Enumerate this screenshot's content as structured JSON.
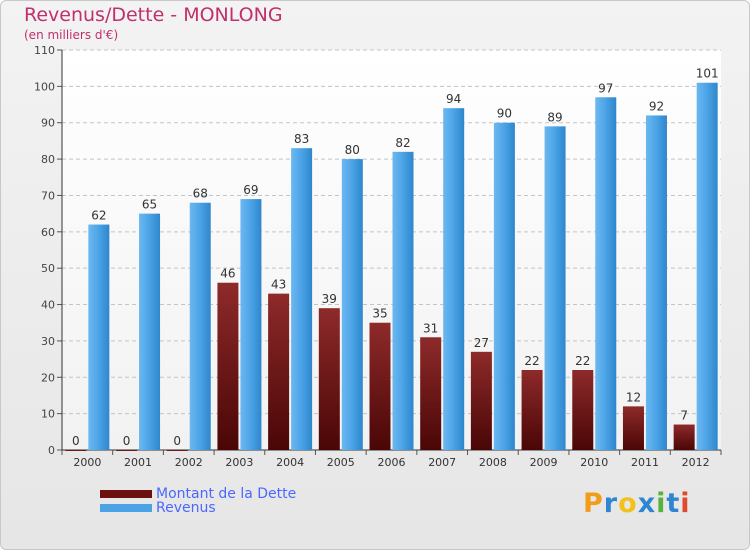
{
  "title": "Revenus/Dette - MONLONG",
  "subtitle": "(en milliers d'€)",
  "chart_data": {
    "type": "bar",
    "categories": [
      "2000",
      "2001",
      "2002",
      "2003",
      "2004",
      "2005",
      "2006",
      "2007",
      "2008",
      "2009",
      "2010",
      "2011",
      "2012"
    ],
    "series": [
      {
        "name": "Montant de la Dette",
        "values": [
          0,
          0,
          0,
          46,
          43,
          39,
          35,
          31,
          27,
          22,
          22,
          12,
          7
        ],
        "color": "#7a1a1a"
      },
      {
        "name": "Revenus",
        "values": [
          62,
          65,
          68,
          69,
          83,
          80,
          82,
          94,
          90,
          89,
          97,
          92,
          101
        ],
        "color": "#4ba3e6"
      }
    ],
    "ylim": [
      0,
      110
    ],
    "yticks": [
      0,
      10,
      20,
      30,
      40,
      50,
      60,
      70,
      80,
      90,
      100,
      110
    ],
    "grid": true,
    "legend_position": "bottom-left"
  },
  "legend": {
    "dette_label": "Montant de la Dette",
    "revenus_label": "Revenus",
    "dette_color": "#6b0f0f",
    "revenus_color": "#4ba3e6"
  },
  "logo": {
    "p": "P",
    "r": "r",
    "o": "o",
    "x": "x",
    "i": "i",
    "t": "t",
    "i2": "i"
  }
}
